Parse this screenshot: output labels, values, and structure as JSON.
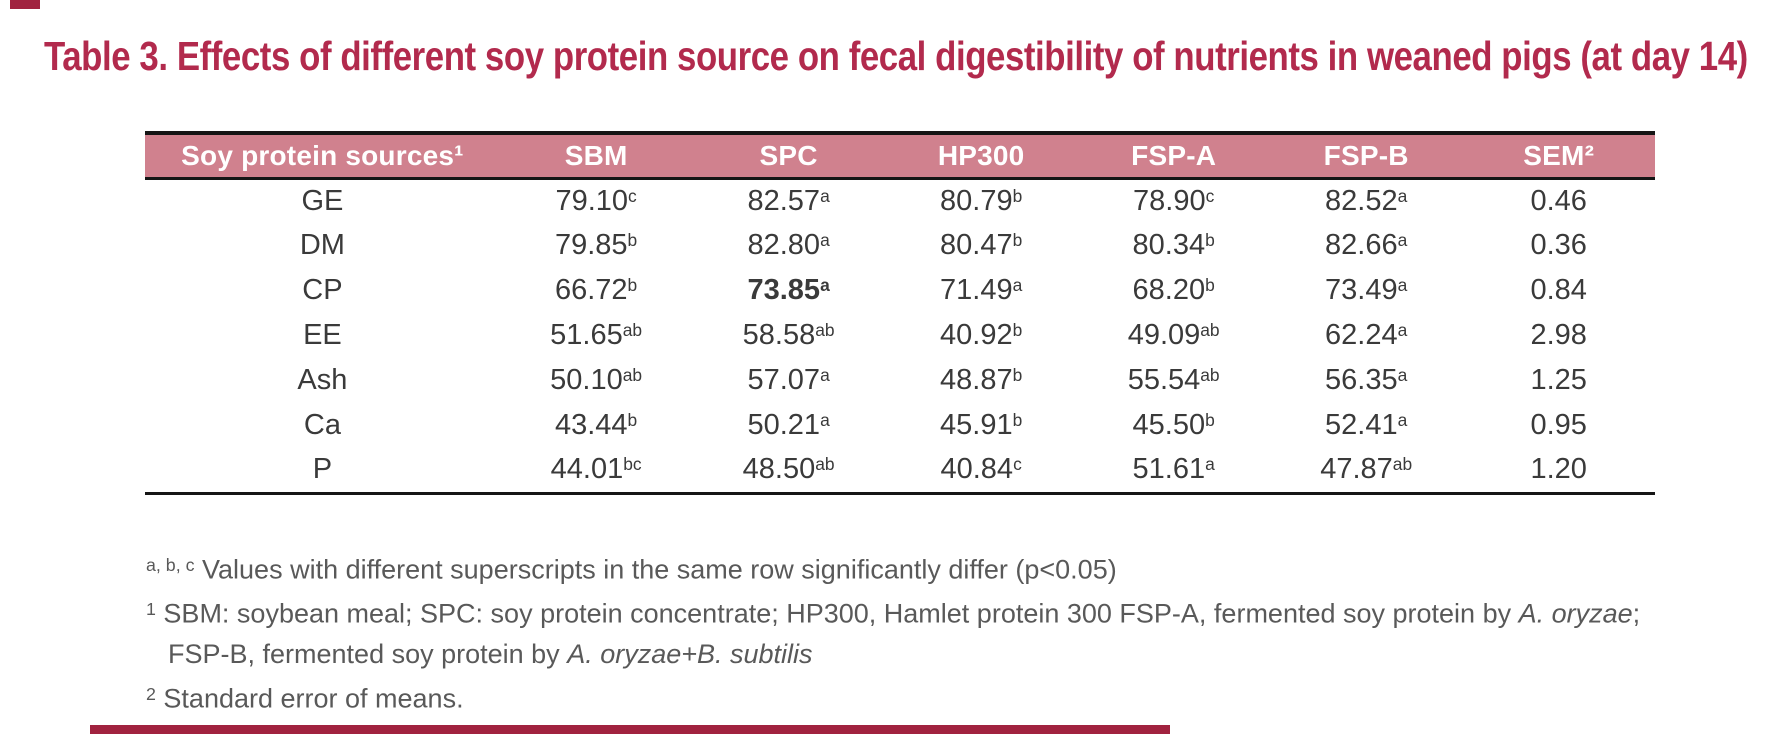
{
  "title": "Table 3. Effects of different soy protein source on fecal digestibility of nutrients in weaned pigs (at day 14)",
  "colors": {
    "title": "#b22a4d",
    "header_bg": "#d0818e",
    "header_text": "#ffffff",
    "accent_bar": "#a1223f",
    "border": "#151515",
    "body_text": "#3a3a3a",
    "footnote_text": "#595959"
  },
  "table": {
    "columns": [
      "Soy protein sources¹",
      "SBM",
      "SPC",
      "HP300",
      "FSP-A",
      "FSP-B",
      "SEM²"
    ],
    "rows": [
      {
        "label": "GE",
        "values": [
          {
            "v": "79.10",
            "sup": "c"
          },
          {
            "v": "82.57",
            "sup": "a"
          },
          {
            "v": "80.79",
            "sup": "b"
          },
          {
            "v": "78.90",
            "sup": "c"
          },
          {
            "v": "82.52",
            "sup": "a"
          },
          {
            "v": "0.46"
          }
        ]
      },
      {
        "label": "DM",
        "values": [
          {
            "v": "79.85",
            "sup": "b"
          },
          {
            "v": "82.80",
            "sup": "a"
          },
          {
            "v": "80.47",
            "sup": "b"
          },
          {
            "v": "80.34",
            "sup": "b"
          },
          {
            "v": "82.66",
            "sup": "a"
          },
          {
            "v": "0.36"
          }
        ]
      },
      {
        "label": "CP",
        "values": [
          {
            "v": "66.72",
            "sup": "b"
          },
          {
            "v": "73.85",
            "sup": "a",
            "bold": true
          },
          {
            "v": "71.49",
            "sup": "a"
          },
          {
            "v": "68.20",
            "sup": "b"
          },
          {
            "v": "73.49",
            "sup": "a"
          },
          {
            "v": "0.84"
          }
        ]
      },
      {
        "label": "EE",
        "values": [
          {
            "v": "51.65",
            "sup": "ab"
          },
          {
            "v": "58.58",
            "sup": "ab"
          },
          {
            "v": "40.92",
            "sup": "b"
          },
          {
            "v": "49.09",
            "sup": "ab"
          },
          {
            "v": "62.24",
            "sup": "a"
          },
          {
            "v": "2.98"
          }
        ]
      },
      {
        "label": "Ash",
        "values": [
          {
            "v": "50.10",
            "sup": "ab"
          },
          {
            "v": "57.07",
            "sup": "a"
          },
          {
            "v": "48.87",
            "sup": "b"
          },
          {
            "v": "55.54",
            "sup": "ab"
          },
          {
            "v": "56.35",
            "sup": "a"
          },
          {
            "v": "1.25"
          }
        ]
      },
      {
        "label": "Ca",
        "values": [
          {
            "v": "43.44",
            "sup": "b"
          },
          {
            "v": "50.21",
            "sup": "a"
          },
          {
            "v": "45.91",
            "sup": "b"
          },
          {
            "v": "45.50",
            "sup": "b"
          },
          {
            "v": "52.41",
            "sup": "a"
          },
          {
            "v": "0.95"
          }
        ]
      },
      {
        "label": "P",
        "values": [
          {
            "v": "44.01",
            "sup": "bc"
          },
          {
            "v": "48.50",
            "sup": "ab"
          },
          {
            "v": "40.84",
            "sup": "c"
          },
          {
            "v": "51.61",
            "sup": "a"
          },
          {
            "v": "47.87",
            "sup": "ab"
          },
          {
            "v": "1.20"
          }
        ]
      }
    ]
  },
  "footnotes": [
    {
      "segments": [
        {
          "t": "a, b, c",
          "sup": true
        },
        {
          "t": " Values with different superscripts in the same row significantly differ (p<0.05)"
        }
      ]
    },
    {
      "segments": [
        {
          "t": "1",
          "sup": true
        },
        {
          "t": " SBM: soybean meal; SPC: soy protein concentrate; HP300, Hamlet protein 300 FSP-A, fermented soy protein by "
        },
        {
          "t": "A. oryzae",
          "italic": true
        },
        {
          "t": ";"
        }
      ]
    },
    {
      "indent": true,
      "segments": [
        {
          "t": "FSP-B, fermented soy protein by "
        },
        {
          "t": "A. oryzae+B. subtilis",
          "italic": true
        }
      ]
    },
    {
      "segments": [
        {
          "t": "2",
          "sup": true
        },
        {
          "t": " Standard error of means."
        }
      ]
    }
  ]
}
